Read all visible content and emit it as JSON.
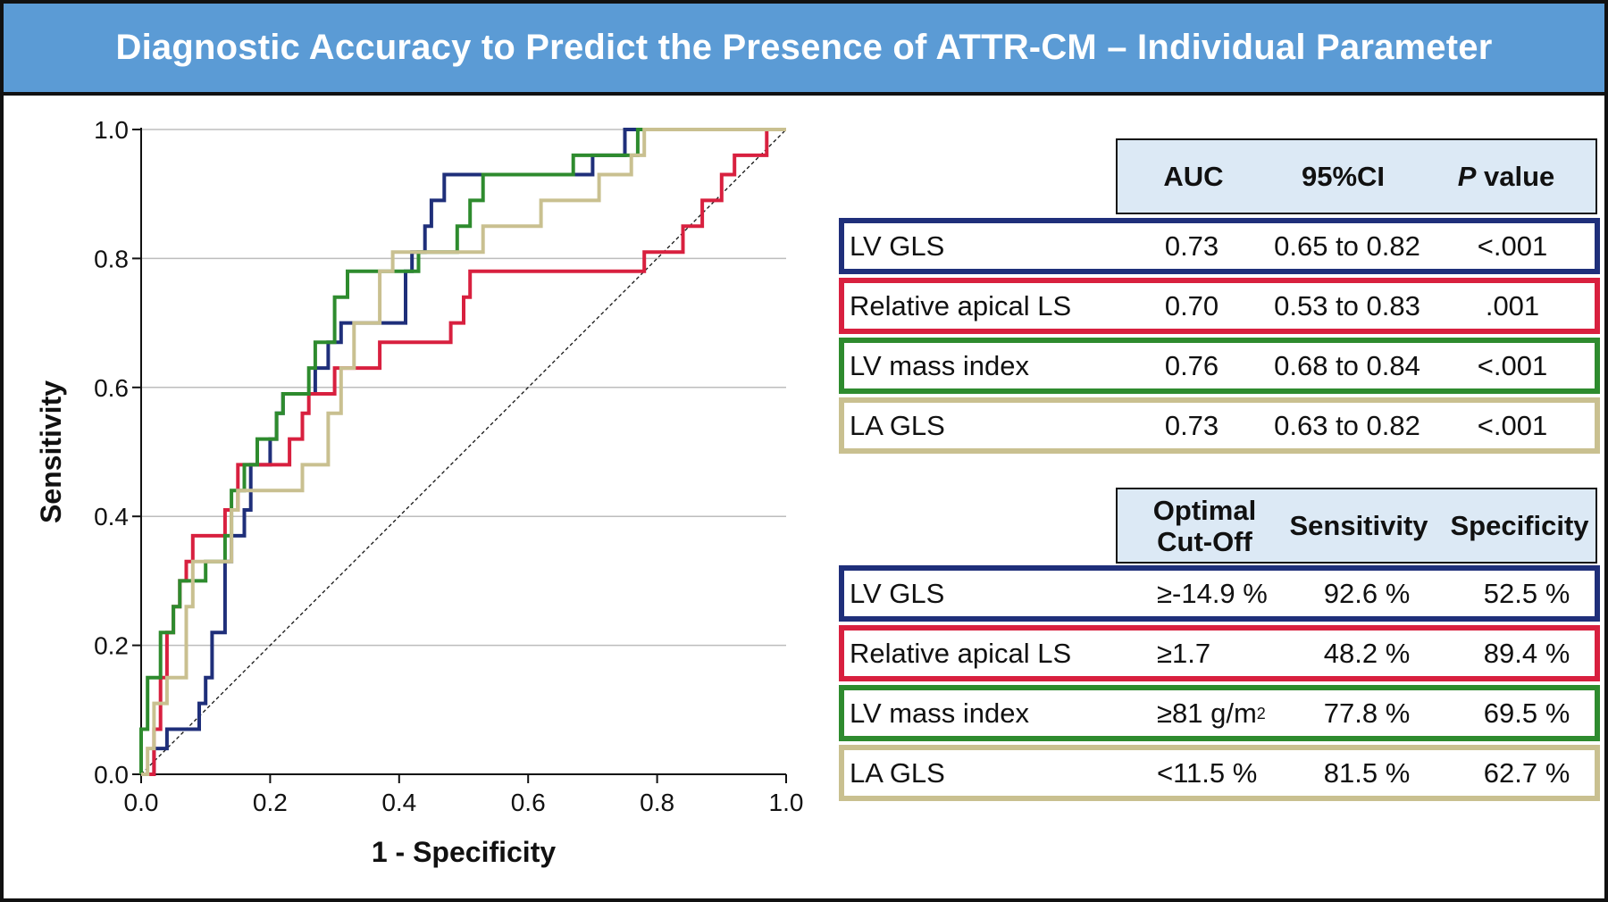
{
  "title": "Diagnostic Accuracy to Predict the Presence of ATTR-CM – Individual Parameter",
  "colors": {
    "header_bg": "#5b9bd5",
    "lv_gls": "#1f2f7a",
    "relative_apical_ls": "#d8203f",
    "lv_mass_index": "#2e8b2e",
    "la_gls": "#c9c090",
    "table_head_bg": "#dce9f5"
  },
  "chart_data": {
    "type": "line",
    "title": "",
    "xlabel": "1 - Specificity",
    "ylabel": "Sensitivity",
    "xlim": [
      0,
      1
    ],
    "ylim": [
      0,
      1
    ],
    "x_ticks": [
      "0.0",
      "0.2",
      "0.4",
      "0.6",
      "0.8",
      "1.0"
    ],
    "y_ticks": [
      "0.0",
      "0.2",
      "0.4",
      "0.6",
      "0.8",
      "1.0"
    ],
    "grid": "horizontal",
    "reference_line": "diagonal",
    "series": [
      {
        "color": "#1f2f7a",
        "points": [
          [
            0,
            0
          ],
          [
            0.02,
            0
          ],
          [
            0.02,
            0.04
          ],
          [
            0.04,
            0.04
          ],
          [
            0.04,
            0.07
          ],
          [
            0.09,
            0.07
          ],
          [
            0.09,
            0.11
          ],
          [
            0.1,
            0.11
          ],
          [
            0.1,
            0.15
          ],
          [
            0.11,
            0.15
          ],
          [
            0.11,
            0.22
          ],
          [
            0.13,
            0.22
          ],
          [
            0.13,
            0.33
          ],
          [
            0.14,
            0.33
          ],
          [
            0.14,
            0.37
          ],
          [
            0.16,
            0.37
          ],
          [
            0.16,
            0.41
          ],
          [
            0.17,
            0.41
          ],
          [
            0.17,
            0.48
          ],
          [
            0.2,
            0.48
          ],
          [
            0.2,
            0.52
          ],
          [
            0.21,
            0.52
          ],
          [
            0.21,
            0.56
          ],
          [
            0.22,
            0.56
          ],
          [
            0.22,
            0.59
          ],
          [
            0.27,
            0.59
          ],
          [
            0.27,
            0.63
          ],
          [
            0.29,
            0.63
          ],
          [
            0.29,
            0.67
          ],
          [
            0.31,
            0.67
          ],
          [
            0.31,
            0.7
          ],
          [
            0.41,
            0.7
          ],
          [
            0.41,
            0.78
          ],
          [
            0.42,
            0.78
          ],
          [
            0.42,
            0.81
          ],
          [
            0.44,
            0.81
          ],
          [
            0.44,
            0.85
          ],
          [
            0.45,
            0.85
          ],
          [
            0.45,
            0.89
          ],
          [
            0.47,
            0.89
          ],
          [
            0.47,
            0.93
          ],
          [
            0.7,
            0.93
          ],
          [
            0.7,
            0.96
          ],
          [
            0.75,
            0.96
          ],
          [
            0.75,
            1
          ],
          [
            1,
            1
          ]
        ]
      },
      {
        "color": "#d8203f",
        "points": [
          [
            0,
            0
          ],
          [
            0.02,
            0
          ],
          [
            0.02,
            0.07
          ],
          [
            0.03,
            0.07
          ],
          [
            0.03,
            0.15
          ],
          [
            0.04,
            0.15
          ],
          [
            0.04,
            0.22
          ],
          [
            0.05,
            0.22
          ],
          [
            0.05,
            0.26
          ],
          [
            0.06,
            0.26
          ],
          [
            0.06,
            0.3
          ],
          [
            0.07,
            0.3
          ],
          [
            0.07,
            0.33
          ],
          [
            0.08,
            0.33
          ],
          [
            0.08,
            0.37
          ],
          [
            0.13,
            0.37
          ],
          [
            0.13,
            0.41
          ],
          [
            0.15,
            0.41
          ],
          [
            0.15,
            0.48
          ],
          [
            0.23,
            0.48
          ],
          [
            0.23,
            0.52
          ],
          [
            0.25,
            0.52
          ],
          [
            0.25,
            0.56
          ],
          [
            0.26,
            0.56
          ],
          [
            0.26,
            0.59
          ],
          [
            0.3,
            0.59
          ],
          [
            0.3,
            0.63
          ],
          [
            0.37,
            0.63
          ],
          [
            0.37,
            0.67
          ],
          [
            0.48,
            0.67
          ],
          [
            0.48,
            0.7
          ],
          [
            0.5,
            0.7
          ],
          [
            0.5,
            0.74
          ],
          [
            0.51,
            0.74
          ],
          [
            0.51,
            0.78
          ],
          [
            0.78,
            0.78
          ],
          [
            0.78,
            0.81
          ],
          [
            0.84,
            0.81
          ],
          [
            0.84,
            0.85
          ],
          [
            0.87,
            0.85
          ],
          [
            0.87,
            0.89
          ],
          [
            0.9,
            0.89
          ],
          [
            0.9,
            0.93
          ],
          [
            0.92,
            0.93
          ],
          [
            0.92,
            0.96
          ],
          [
            0.97,
            0.96
          ],
          [
            0.97,
            1
          ],
          [
            1,
            1
          ]
        ]
      },
      {
        "color": "#2e8b2e",
        "points": [
          [
            0,
            0
          ],
          [
            0,
            0.07
          ],
          [
            0.01,
            0.07
          ],
          [
            0.01,
            0.15
          ],
          [
            0.03,
            0.15
          ],
          [
            0.03,
            0.22
          ],
          [
            0.05,
            0.22
          ],
          [
            0.05,
            0.26
          ],
          [
            0.06,
            0.26
          ],
          [
            0.06,
            0.3
          ],
          [
            0.1,
            0.3
          ],
          [
            0.1,
            0.33
          ],
          [
            0.13,
            0.33
          ],
          [
            0.13,
            0.37
          ],
          [
            0.14,
            0.37
          ],
          [
            0.14,
            0.44
          ],
          [
            0.16,
            0.44
          ],
          [
            0.16,
            0.48
          ],
          [
            0.18,
            0.48
          ],
          [
            0.18,
            0.52
          ],
          [
            0.21,
            0.52
          ],
          [
            0.21,
            0.56
          ],
          [
            0.22,
            0.56
          ],
          [
            0.22,
            0.59
          ],
          [
            0.26,
            0.59
          ],
          [
            0.26,
            0.63
          ],
          [
            0.27,
            0.63
          ],
          [
            0.27,
            0.67
          ],
          [
            0.3,
            0.67
          ],
          [
            0.3,
            0.74
          ],
          [
            0.32,
            0.74
          ],
          [
            0.32,
            0.78
          ],
          [
            0.43,
            0.78
          ],
          [
            0.43,
            0.81
          ],
          [
            0.49,
            0.81
          ],
          [
            0.49,
            0.85
          ],
          [
            0.51,
            0.85
          ],
          [
            0.51,
            0.89
          ],
          [
            0.53,
            0.89
          ],
          [
            0.53,
            0.93
          ],
          [
            0.67,
            0.93
          ],
          [
            0.67,
            0.96
          ],
          [
            0.77,
            0.96
          ],
          [
            0.77,
            1
          ],
          [
            1,
            1
          ]
        ]
      },
      {
        "color": "#c9c090",
        "points": [
          [
            0,
            0
          ],
          [
            0.01,
            0
          ],
          [
            0.01,
            0.04
          ],
          [
            0.02,
            0.04
          ],
          [
            0.02,
            0.11
          ],
          [
            0.04,
            0.11
          ],
          [
            0.04,
            0.15
          ],
          [
            0.07,
            0.15
          ],
          [
            0.07,
            0.26
          ],
          [
            0.08,
            0.26
          ],
          [
            0.08,
            0.33
          ],
          [
            0.14,
            0.33
          ],
          [
            0.14,
            0.41
          ],
          [
            0.15,
            0.41
          ],
          [
            0.15,
            0.44
          ],
          [
            0.25,
            0.44
          ],
          [
            0.25,
            0.48
          ],
          [
            0.29,
            0.48
          ],
          [
            0.29,
            0.56
          ],
          [
            0.31,
            0.56
          ],
          [
            0.31,
            0.63
          ],
          [
            0.33,
            0.63
          ],
          [
            0.33,
            0.7
          ],
          [
            0.37,
            0.7
          ],
          [
            0.37,
            0.78
          ],
          [
            0.39,
            0.78
          ],
          [
            0.39,
            0.81
          ],
          [
            0.53,
            0.81
          ],
          [
            0.53,
            0.85
          ],
          [
            0.62,
            0.85
          ],
          [
            0.62,
            0.89
          ],
          [
            0.71,
            0.89
          ],
          [
            0.71,
            0.93
          ],
          [
            0.76,
            0.93
          ],
          [
            0.76,
            0.96
          ],
          [
            0.78,
            0.96
          ],
          [
            0.78,
            1
          ],
          [
            1,
            1
          ]
        ]
      }
    ]
  },
  "table1": {
    "headers": {
      "auc": "AUC",
      "ci": "95%CI",
      "p_italic": "P",
      "p_rest": " value"
    },
    "rows": [
      {
        "name": "LV GLS",
        "auc": "0.73",
        "ci": "0.65 to 0.82",
        "p": "<.001"
      },
      {
        "name": "Relative apical LS",
        "auc": "0.70",
        "ci": "0.53 to 0.83",
        "p": ".001"
      },
      {
        "name": "LV mass index",
        "auc": "0.76",
        "ci": "0.68 to 0.84",
        "p": "<.001"
      },
      {
        "name": "LA GLS",
        "auc": "0.73",
        "ci": "0.63 to 0.82",
        "p": "<.001"
      }
    ]
  },
  "table2": {
    "headers": {
      "cutoff_line1": "Optimal",
      "cutoff_line2": "Cut-Off",
      "sensitivity": "Sensitivity",
      "specificity": "Specificity"
    },
    "rows": [
      {
        "name": "LV GLS",
        "cutoff": "≥-14.9 %",
        "sensitivity": "92.6 %",
        "specificity": "52.5 %"
      },
      {
        "name": "Relative apical LS",
        "cutoff": "≥1.7",
        "sensitivity": "48.2 %",
        "specificity": "89.4 %"
      },
      {
        "name": "LV mass index",
        "cutoff": "≥81 g/m",
        "cutoff_sup": "2",
        "sensitivity": "77.8 %",
        "specificity": "69.5 %"
      },
      {
        "name": "LA GLS",
        "cutoff": "<11.5 %",
        "sensitivity": "81.5 %",
        "specificity": "62.7 %"
      }
    ]
  }
}
